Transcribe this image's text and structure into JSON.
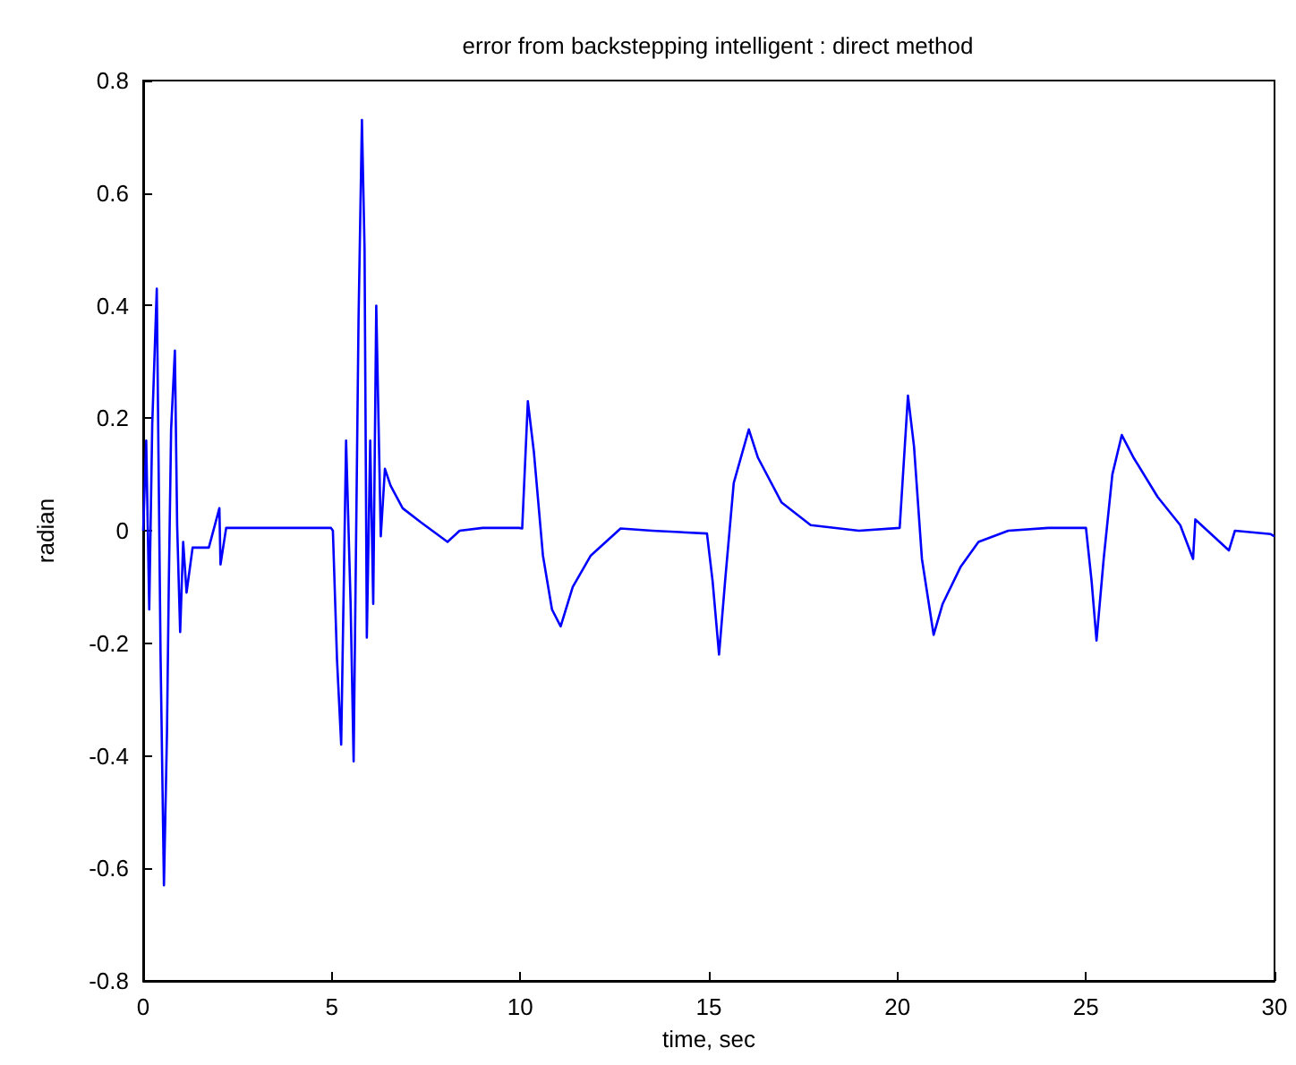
{
  "chart_data": {
    "type": "line",
    "title": "error from backstepping intelligent : direct method",
    "xlabel": "time, sec",
    "ylabel": "radian",
    "xlim": [
      0,
      30
    ],
    "xticks": [
      0,
      5,
      10,
      15,
      20,
      25,
      30
    ],
    "ylim": [
      -0.8,
      0.8
    ],
    "yticks": [
      -0.8,
      -0.6,
      -0.4,
      -0.2,
      0,
      0.2,
      0.4,
      0.6,
      0.8
    ],
    "marker": "none",
    "line_style": "solid",
    "series": [
      {
        "color": "#0000ff",
        "x": [
          0,
          0.08,
          0.16,
          0.24,
          0.36,
          0.46,
          0.55,
          0.63,
          0.68,
          0.74,
          0.84,
          0.9,
          0.98,
          1.06,
          1.15,
          1.31,
          1.74,
          2.02,
          2.05,
          2.2,
          3.0,
          4.0,
          4.98,
          5.03,
          5.14,
          5.25,
          5.38,
          5.5,
          5.58,
          5.71,
          5.8,
          5.87,
          5.93,
          6.02,
          6.1,
          6.18,
          6.3,
          6.41,
          6.56,
          6.88,
          7.36,
          8.07,
          8.39,
          9.0,
          9.97,
          10.05,
          10.2,
          10.36,
          10.6,
          10.84,
          11.07,
          11.39,
          11.87,
          12.66,
          13.5,
          14.95,
          15.1,
          15.27,
          15.43,
          15.66,
          16.06,
          16.3,
          16.93,
          17.7,
          18.98,
          20.06,
          20.28,
          20.44,
          20.65,
          20.96,
          21.2,
          21.67,
          22.15,
          22.94,
          24.0,
          25.0,
          25.15,
          25.28,
          25.47,
          25.7,
          25.95,
          26.26,
          26.9,
          27.5,
          27.84,
          27.9,
          28.79,
          28.95,
          29.9,
          30
        ],
        "values": [
          0,
          0.16,
          -0.14,
          0.19,
          0.43,
          -0.22,
          -0.63,
          -0.36,
          -0.09,
          0.18,
          0.32,
          0.01,
          -0.18,
          -0.02,
          -0.11,
          -0.03,
          -0.03,
          0.04,
          -0.06,
          0.005,
          0.005,
          0.005,
          0.005,
          0,
          -0.23,
          -0.38,
          0.16,
          -0.13,
          -0.41,
          0.375,
          0.73,
          0.5,
          -0.19,
          0.16,
          -0.13,
          0.4,
          -0.01,
          0.11,
          0.08,
          0.04,
          0.015,
          -0.02,
          0,
          0.005,
          0.005,
          0.004,
          0.23,
          0.14,
          -0.044,
          -0.14,
          -0.17,
          -0.1,
          -0.044,
          0.004,
          0,
          -0.005,
          -0.09,
          -0.22,
          -0.09,
          0.085,
          0.18,
          0.13,
          0.05,
          0.01,
          0,
          0.005,
          0.24,
          0.15,
          -0.05,
          -0.185,
          -0.13,
          -0.065,
          -0.02,
          0,
          0.005,
          0.005,
          -0.09,
          -0.195,
          -0.05,
          0.1,
          0.17,
          0.13,
          0.06,
          0.01,
          -0.05,
          0.02,
          -0.035,
          0,
          -0.006,
          -0.01
        ]
      }
    ]
  }
}
